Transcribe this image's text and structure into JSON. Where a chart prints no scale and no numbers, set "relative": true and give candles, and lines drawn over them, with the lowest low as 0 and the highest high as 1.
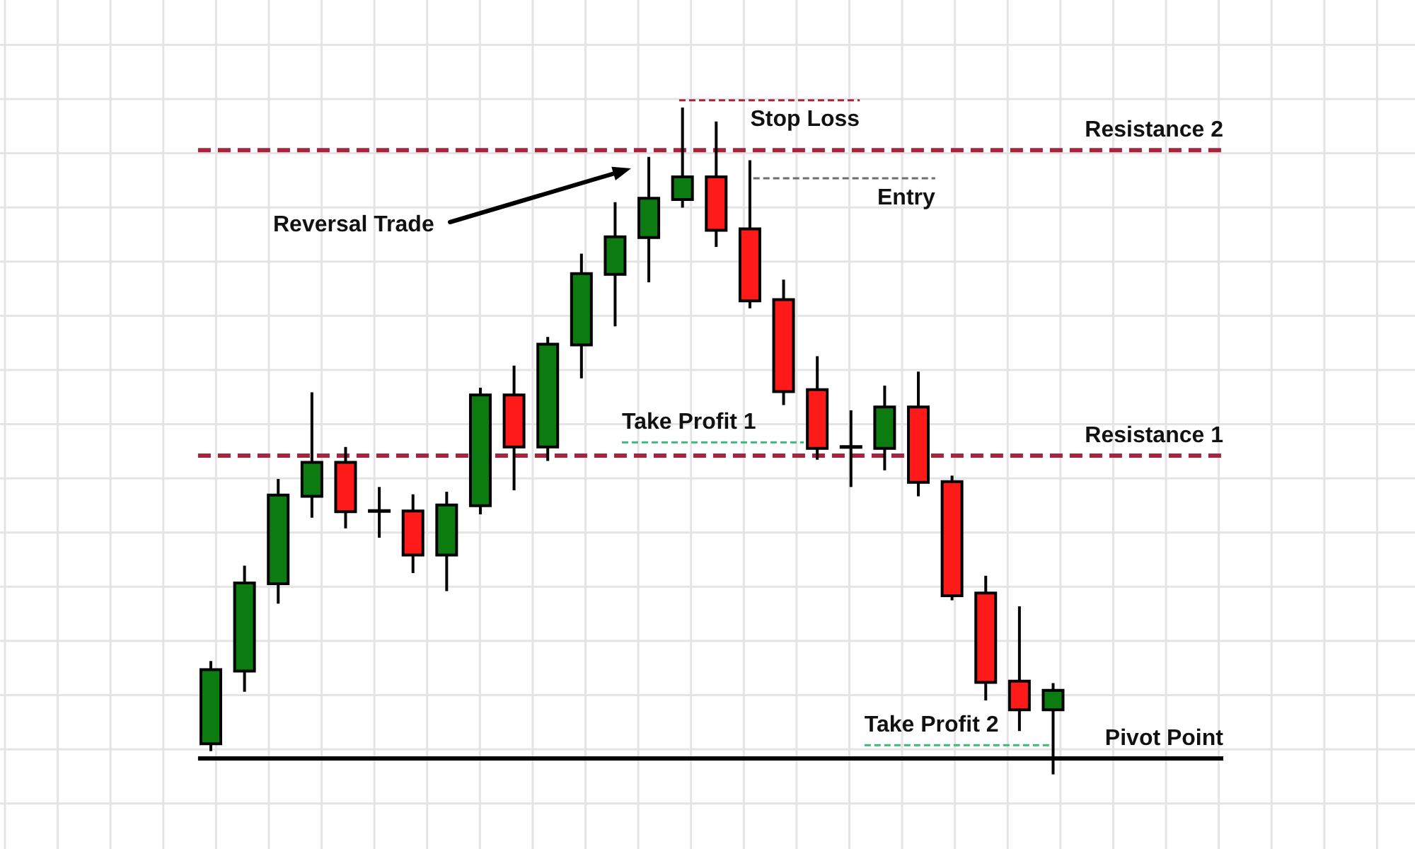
{
  "chart_data": {
    "type": "candlestick",
    "relative": true,
    "tick_labels": false,
    "categories": [
      null,
      null,
      null,
      null,
      null,
      null,
      null,
      null,
      null,
      null,
      null,
      null,
      null,
      null,
      null,
      null,
      null,
      null,
      null,
      null,
      null,
      null,
      null,
      null,
      null,
      null
    ],
    "ohlc": [
      [
        0.046,
        0.17,
        0.035,
        0.157
      ],
      [
        0.155,
        0.313,
        0.124,
        0.287
      ],
      [
        0.286,
        0.443,
        0.256,
        0.419
      ],
      [
        0.417,
        0.573,
        0.385,
        0.468
      ],
      [
        0.468,
        0.491,
        0.369,
        0.394
      ],
      [
        0.395,
        0.431,
        0.355,
        0.395
      ],
      [
        0.395,
        0.42,
        0.302,
        0.329
      ],
      [
        0.329,
        0.424,
        0.275,
        0.404
      ],
      [
        0.403,
        0.58,
        0.39,
        0.569
      ],
      [
        0.569,
        0.613,
        0.426,
        0.491
      ],
      [
        0.491,
        0.656,
        0.47,
        0.645
      ],
      [
        0.644,
        0.781,
        0.594,
        0.751
      ],
      [
        0.75,
        0.858,
        0.672,
        0.806
      ],
      [
        0.805,
        0.926,
        0.738,
        0.864
      ],
      [
        0.862,
        1.0,
        0.85,
        0.896
      ],
      [
        0.896,
        0.979,
        0.791,
        0.816
      ],
      [
        0.818,
        0.921,
        0.699,
        0.71
      ],
      [
        0.712,
        0.742,
        0.554,
        0.574
      ],
      [
        0.577,
        0.627,
        0.472,
        0.489
      ],
      [
        0.491,
        0.546,
        0.431,
        0.491
      ],
      [
        0.489,
        0.583,
        0.456,
        0.551
      ],
      [
        0.551,
        0.604,
        0.417,
        0.438
      ],
      [
        0.439,
        0.448,
        0.261,
        0.268
      ],
      [
        0.272,
        0.298,
        0.111,
        0.138
      ],
      [
        0.14,
        0.252,
        0.065,
        0.097
      ],
      [
        0.097,
        0.137,
        0.0,
        0.126
      ]
    ],
    "colors": [
      "#0c7c10",
      "#0c7c10",
      "#0c7c10",
      "#0c7c10",
      "#ff1a1a",
      "#000000",
      "#ff1a1a",
      "#0c7c10",
      "#0c7c10",
      "#ff1a1a",
      "#0c7c10",
      "#0c7c10",
      "#0c7c10",
      "#0c7c10",
      "#0c7c10",
      "#ff1a1a",
      "#ff1a1a",
      "#ff1a1a",
      "#ff1a1a",
      "#000000",
      "#0c7c10",
      "#ff1a1a",
      "#ff1a1a",
      "#ff1a1a",
      "#ff1a1a",
      "#0c7c10"
    ],
    "ref_lines": [
      {
        "axis": "y",
        "value": 0.936,
        "label": "Resistance 2",
        "color": "#a8243c",
        "line_style": "dashed"
      },
      {
        "axis": "y",
        "value": 1.011,
        "label": "Stop Loss",
        "color": "#a8243c",
        "line_style": "dashed"
      },
      {
        "axis": "y",
        "value": 0.894,
        "label": "Entry",
        "color": "#6e6e6e",
        "line_style": "dashed"
      },
      {
        "axis": "y",
        "value": 0.498,
        "label": "Take Profit 1",
        "color": "#3cb878",
        "line_style": "dashed"
      },
      {
        "axis": "y",
        "value": 0.478,
        "label": "Resistance 1",
        "color": "#a8243c",
        "line_style": "dashed"
      },
      {
        "axis": "y",
        "value": 0.044,
        "label": "Take Profit 2",
        "color": "#3cb878",
        "line_style": "dashed"
      },
      {
        "axis": "y",
        "value": 0.024,
        "label": "Pivot Point",
        "color": "#000000",
        "line_style": "solid"
      }
    ],
    "annotations": [
      "Reversal Trade"
    ]
  }
}
